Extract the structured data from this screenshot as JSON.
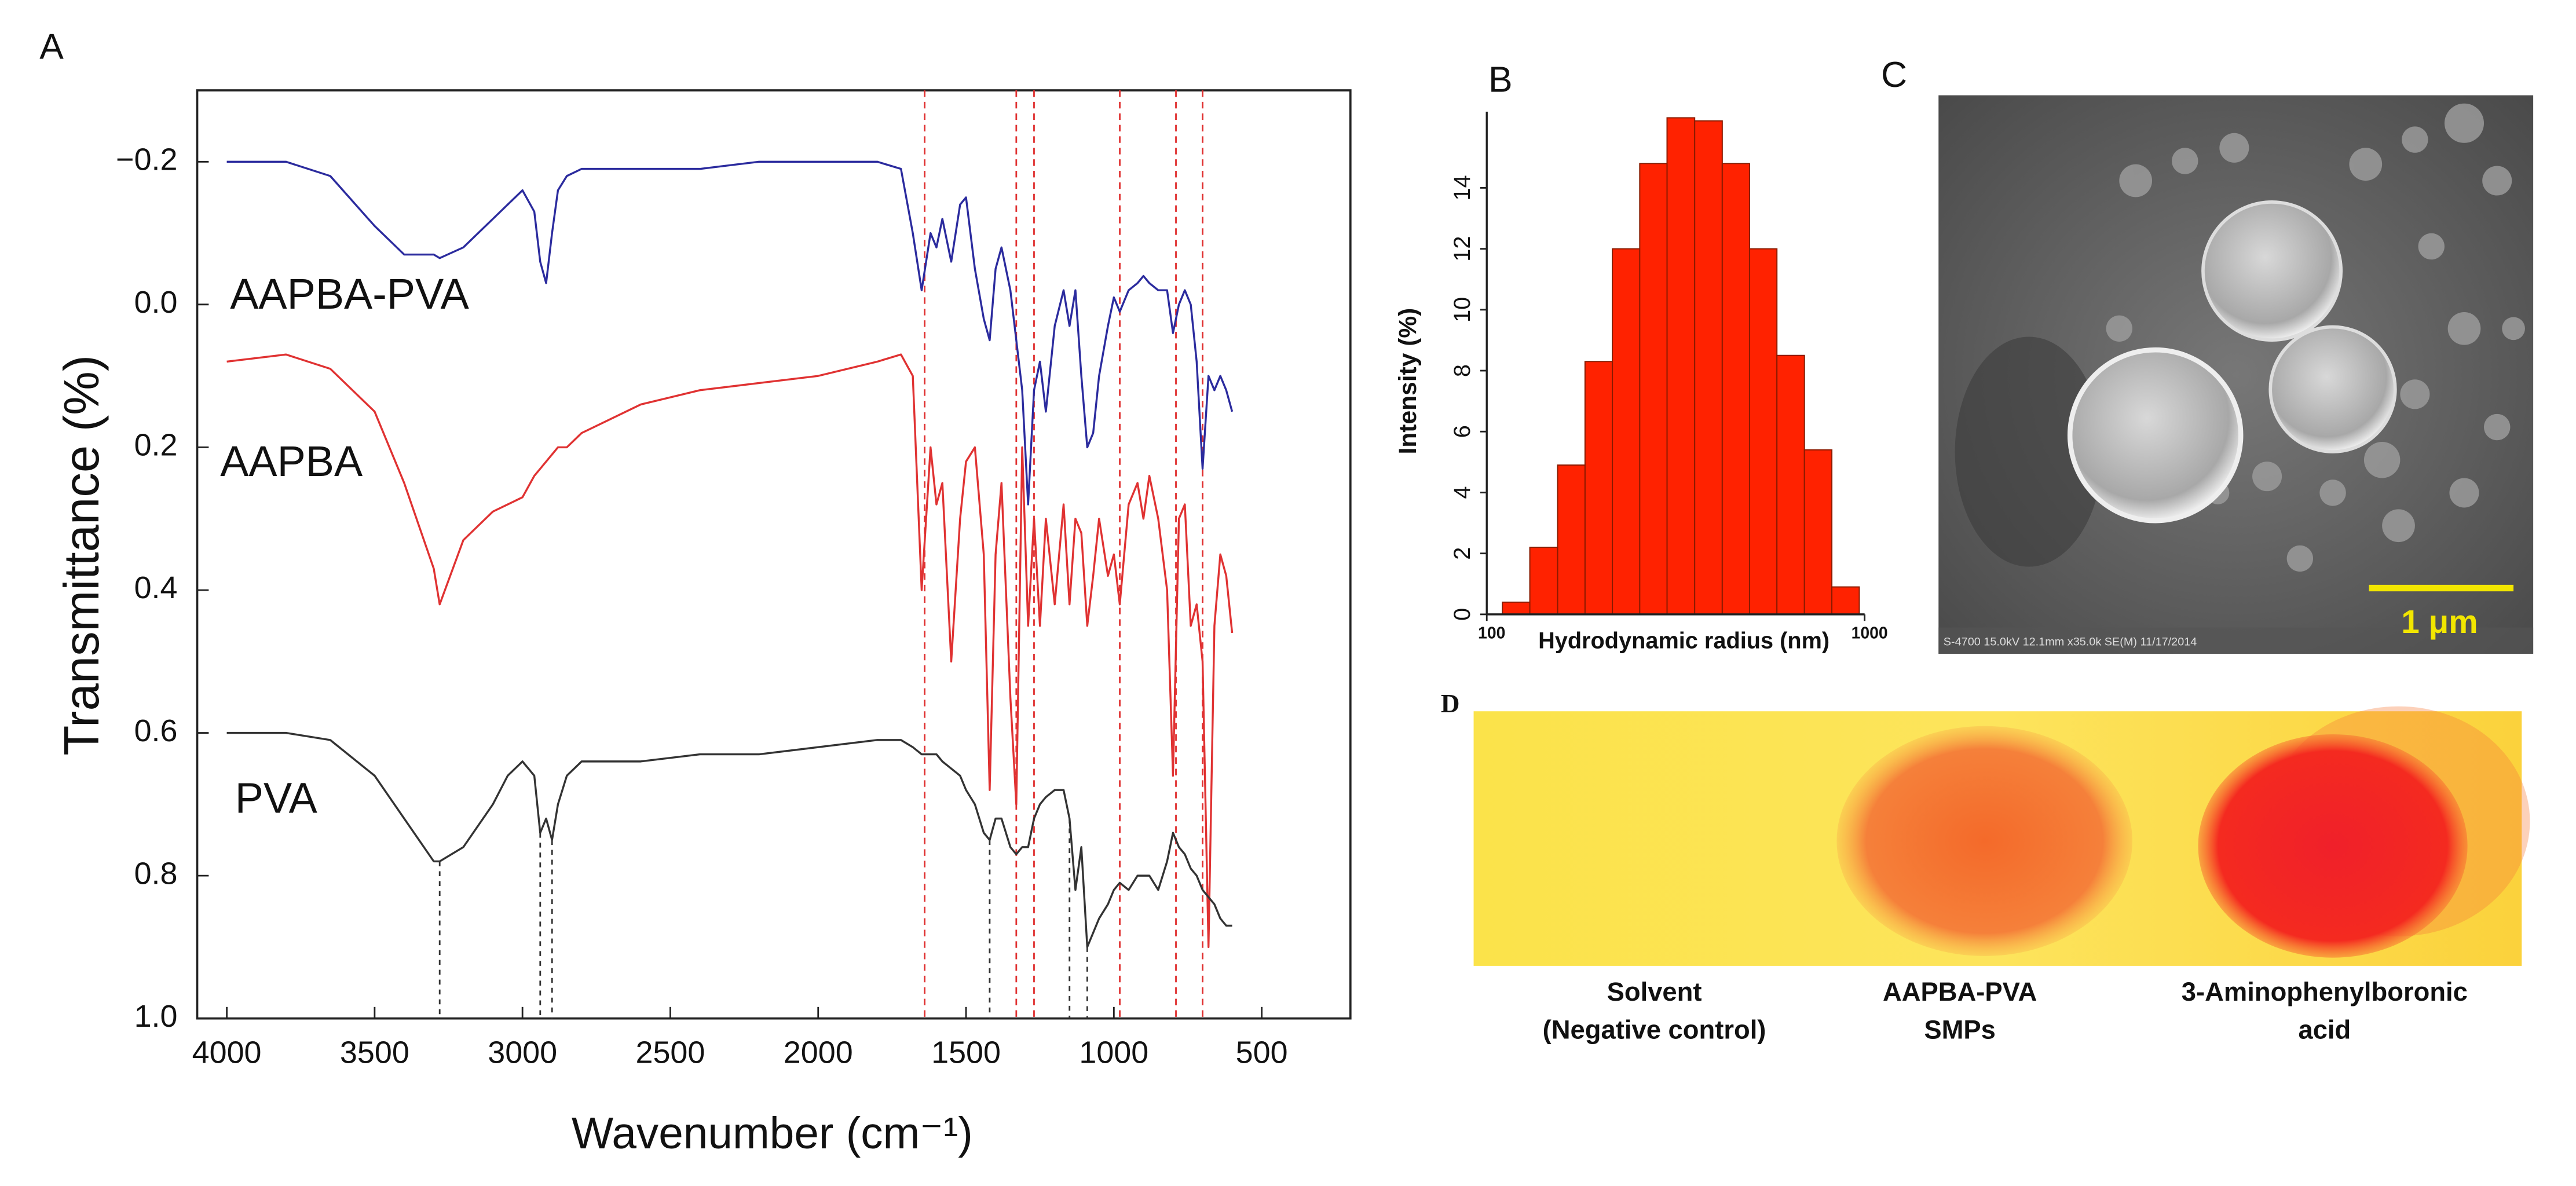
{
  "chart_data": [
    {
      "type": "line",
      "panel_label": "A",
      "xlabel": "Wavenumber (cm⁻¹)",
      "ylabel": "Transmittance (%)",
      "xlim": [
        4100,
        200
      ],
      "ylim": [
        1.0,
        -0.3
      ],
      "xticks": [
        4000,
        3500,
        3000,
        2500,
        2000,
        1500,
        1000,
        500
      ],
      "yticks": [
        {
          "value": -0.2,
          "label": "−0.2"
        },
        {
          "value": 0,
          "label": "0.0"
        },
        0.2,
        0.4,
        0.6,
        0.8,
        {
          "value": 1,
          "label": "1.0"
        }
      ],
      "grid": false,
      "x": [
        4000,
        3800,
        3650,
        3500,
        3400,
        3300,
        3280,
        3200,
        3100,
        3050,
        3000,
        2960,
        2940,
        2920,
        2900,
        2880,
        2850,
        2800,
        2600,
        2400,
        2200,
        2000,
        1800,
        1720,
        1680,
        1650,
        1620,
        1600,
        1580,
        1550,
        1520,
        1500,
        1470,
        1440,
        1420,
        1400,
        1380,
        1350,
        1330,
        1310,
        1290,
        1270,
        1250,
        1230,
        1200,
        1170,
        1150,
        1130,
        1110,
        1090,
        1070,
        1050,
        1020,
        1000,
        980,
        950,
        920,
        900,
        880,
        850,
        820,
        800,
        780,
        760,
        740,
        720,
        700,
        680,
        660,
        640,
        620,
        600
      ],
      "series": [
        {
          "name": "AAPBA-PVA",
          "color": "#2b2b9e",
          "values": [
            -0.2,
            -0.2,
            -0.18,
            -0.11,
            -0.07,
            -0.07,
            -0.065,
            -0.08,
            -0.12,
            -0.14,
            -0.16,
            -0.13,
            -0.06,
            -0.03,
            -0.1,
            -0.16,
            -0.18,
            -0.19,
            -0.19,
            -0.19,
            -0.2,
            -0.2,
            -0.2,
            -0.19,
            -0.1,
            -0.02,
            -0.1,
            -0.08,
            -0.12,
            -0.06,
            -0.14,
            -0.15,
            -0.05,
            0.02,
            0.05,
            -0.05,
            -0.08,
            -0.02,
            0.05,
            0.12,
            0.28,
            0.12,
            0.08,
            0.15,
            0.03,
            -0.02,
            0.03,
            -0.02,
            0.1,
            0.2,
            0.18,
            0.1,
            0.03,
            -0.01,
            0.01,
            -0.02,
            -0.03,
            -0.04,
            -0.03,
            -0.02,
            -0.02,
            0.04,
            0,
            -0.02,
            0,
            0.08,
            0.23,
            0.1,
            0.12,
            0.1,
            0.12,
            0.15
          ]
        },
        {
          "name": "AAPBA",
          "color": "#e03232",
          "values": [
            0.08,
            0.07,
            0.09,
            0.15,
            0.25,
            0.37,
            0.42,
            0.33,
            0.29,
            0.28,
            0.27,
            0.24,
            0.23,
            0.22,
            0.21,
            0.2,
            0.2,
            0.18,
            0.14,
            0.12,
            0.11,
            0.1,
            0.08,
            0.07,
            0.1,
            0.4,
            0.2,
            0.28,
            0.25,
            0.5,
            0.3,
            0.22,
            0.2,
            0.35,
            0.68,
            0.35,
            0.25,
            0.55,
            0.7,
            0.2,
            0.45,
            0.3,
            0.45,
            0.3,
            0.42,
            0.28,
            0.42,
            0.3,
            0.32,
            0.45,
            0.38,
            0.3,
            0.38,
            0.35,
            0.42,
            0.28,
            0.25,
            0.3,
            0.24,
            0.3,
            0.4,
            0.66,
            0.3,
            0.28,
            0.45,
            0.42,
            0.5,
            0.9,
            0.45,
            0.35,
            0.38,
            0.46
          ]
        },
        {
          "name": "PVA",
          "color": "#333333",
          "values": [
            0.6,
            0.6,
            0.61,
            0.66,
            0.72,
            0.78,
            0.78,
            0.76,
            0.7,
            0.66,
            0.64,
            0.66,
            0.74,
            0.72,
            0.75,
            0.7,
            0.66,
            0.64,
            0.64,
            0.63,
            0.63,
            0.62,
            0.61,
            0.61,
            0.62,
            0.63,
            0.63,
            0.63,
            0.64,
            0.65,
            0.66,
            0.68,
            0.7,
            0.74,
            0.75,
            0.72,
            0.72,
            0.76,
            0.77,
            0.76,
            0.76,
            0.72,
            0.7,
            0.69,
            0.68,
            0.68,
            0.72,
            0.82,
            0.76,
            0.9,
            0.88,
            0.86,
            0.84,
            0.82,
            0.81,
            0.82,
            0.8,
            0.8,
            0.8,
            0.82,
            0.78,
            0.74,
            0.76,
            0.77,
            0.79,
            0.8,
            0.82,
            0.83,
            0.84,
            0.86,
            0.87,
            0.87
          ]
        }
      ],
      "guides": {
        "color": "#e03232",
        "x": [
          1640,
          1330,
          1270,
          980,
          790,
          700
        ]
      },
      "drops": {
        "color": "#333333",
        "x": [
          3280,
          2940,
          2900,
          1420,
          1150,
          1090
        ],
        "y": [
          0.78,
          0.74,
          0.75,
          0.75,
          0.72,
          0.9
        ]
      }
    },
    {
      "type": "histogram",
      "panel_label": "B",
      "xlabel": "Hydrodynamic radius (nm)",
      "ylabel": "Intensity (%)",
      "log_x": true,
      "xlim": [
        100,
        1000
      ],
      "xticks": [
        100,
        1000
      ],
      "ylim": [
        0,
        16.5
      ],
      "yticks": [
        0,
        2,
        4,
        6,
        8,
        10,
        12,
        14
      ],
      "color": "#ff2200",
      "bins": [
        110,
        130,
        154,
        182,
        215,
        254,
        300,
        355,
        420,
        496,
        586,
        693,
        819,
        968
      ],
      "values": [
        0.4,
        2.2,
        4.9,
        8.3,
        12,
        14.8,
        16.3,
        16.2,
        14.8,
        12,
        8.5,
        5.4,
        0.9
      ]
    }
  ],
  "panel_c": {
    "label": "C",
    "scale_bar": "1 μm",
    "caption": "S-4700 15.0kV 12.1mm x35.0k SE(M) 11/17/2014"
  },
  "panel_d": {
    "label": "D",
    "spots": [
      {
        "line1": "Solvent",
        "line2": "(Negative control)"
      },
      {
        "line1": "AAPBA-PVA",
        "line2": "SMPs"
      },
      {
        "line1": "3-Aminophenylboronic",
        "line2": "acid"
      }
    ]
  }
}
